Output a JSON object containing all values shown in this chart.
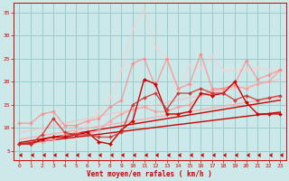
{
  "background_color": "#cce8e8",
  "grid_color": "#99cccc",
  "xlabel": "Vent moyen/en rafales ( km/h )",
  "xlabel_color": "#cc0000",
  "tick_color": "#cc0000",
  "xlim": [
    -0.5,
    23.5
  ],
  "ylim": [
    3,
    37
  ],
  "yticks": [
    5,
    10,
    15,
    20,
    25,
    30,
    35
  ],
  "xticks": [
    0,
    1,
    2,
    3,
    4,
    5,
    6,
    7,
    8,
    9,
    10,
    11,
    12,
    13,
    14,
    15,
    16,
    17,
    18,
    19,
    20,
    21,
    22,
    23
  ],
  "lines": [
    {
      "x": [
        0,
        1,
        2,
        3,
        4,
        5,
        6,
        7,
        8,
        9,
        10,
        11,
        12,
        13,
        14,
        15,
        16,
        17,
        18,
        19,
        20,
        21,
        22,
        23
      ],
      "y": [
        6.5,
        6.8,
        7.1,
        7.4,
        7.7,
        8.0,
        8.3,
        8.6,
        8.9,
        9.2,
        9.5,
        9.8,
        10.1,
        10.4,
        10.7,
        11.0,
        11.3,
        11.6,
        11.9,
        12.2,
        12.5,
        12.8,
        13.1,
        13.4
      ],
      "color": "#cc0000",
      "lw": 1.0,
      "marker": null,
      "alpha": 1.0,
      "linestyle": "-",
      "zorder": 4
    },
    {
      "x": [
        0,
        1,
        2,
        3,
        4,
        5,
        6,
        7,
        8,
        9,
        10,
        11,
        12,
        13,
        14,
        15,
        16,
        17,
        18,
        19,
        20,
        21,
        22,
        23
      ],
      "y": [
        6.8,
        7.2,
        7.6,
        8.0,
        8.4,
        8.8,
        9.2,
        9.6,
        10.0,
        10.4,
        10.8,
        11.2,
        11.6,
        12.0,
        12.4,
        12.8,
        13.2,
        13.6,
        14.0,
        14.4,
        14.8,
        15.2,
        15.6,
        16.0
      ],
      "color": "#cc0000",
      "lw": 1.0,
      "marker": null,
      "alpha": 1.0,
      "linestyle": "-",
      "zorder": 4
    },
    {
      "x": [
        0,
        1,
        2,
        3,
        4,
        5,
        6,
        7,
        8,
        9,
        10,
        11,
        12,
        13,
        14,
        15,
        16,
        17,
        18,
        19,
        20,
        21,
        22,
        23
      ],
      "y": [
        7.5,
        7.9,
        8.3,
        8.7,
        9.1,
        9.5,
        9.9,
        10.3,
        10.7,
        11.1,
        11.5,
        11.9,
        12.3,
        12.7,
        13.1,
        13.5,
        13.9,
        14.3,
        14.7,
        15.1,
        15.5,
        15.9,
        16.3,
        16.7
      ],
      "color": "#ffaaaa",
      "lw": 1.0,
      "marker": null,
      "alpha": 0.9,
      "linestyle": "-",
      "zorder": 3
    },
    {
      "x": [
        0,
        1,
        2,
        3,
        4,
        5,
        6,
        7,
        8,
        9,
        10,
        11,
        12,
        13,
        14,
        15,
        16,
        17,
        18,
        19,
        20,
        21,
        22,
        23
      ],
      "y": [
        9.0,
        9.5,
        10.0,
        10.5,
        11.0,
        11.5,
        12.0,
        12.5,
        13.0,
        13.5,
        14.0,
        14.5,
        15.0,
        15.5,
        16.0,
        16.5,
        17.0,
        17.5,
        18.0,
        18.5,
        19.0,
        19.5,
        20.0,
        20.5
      ],
      "color": "#ffbbbb",
      "lw": 1.0,
      "marker": null,
      "alpha": 0.7,
      "linestyle": "-",
      "zorder": 3
    },
    {
      "x": [
        0,
        1,
        2,
        3,
        4,
        5,
        6,
        7,
        8,
        9,
        10,
        11,
        12,
        13,
        14,
        15,
        16,
        17,
        18,
        19,
        20,
        21,
        22,
        23
      ],
      "y": [
        6.5,
        6.5,
        7.5,
        8.0,
        8.0,
        8.5,
        9.0,
        7.0,
        6.5,
        9.5,
        11.5,
        20.5,
        19.5,
        13.0,
        13.0,
        13.5,
        17.5,
        17.0,
        17.5,
        20.0,
        15.5,
        13.0,
        13.0,
        13.0
      ],
      "color": "#cc0000",
      "lw": 1.0,
      "marker": "D",
      "markersize": 2.0,
      "alpha": 1.0,
      "linestyle": "-",
      "zorder": 5
    },
    {
      "x": [
        0,
        1,
        2,
        3,
        4,
        5,
        6,
        7,
        8,
        9,
        10,
        11,
        12,
        13,
        14,
        15,
        16,
        17,
        18,
        19,
        20,
        21,
        22,
        23
      ],
      "y": [
        6.5,
        6.5,
        8.5,
        12.0,
        9.0,
        8.5,
        8.5,
        8.0,
        8.0,
        9.0,
        15.0,
        16.5,
        17.5,
        14.0,
        17.5,
        17.5,
        18.5,
        17.5,
        17.5,
        16.0,
        17.0,
        16.0,
        16.5,
        17.0
      ],
      "color": "#cc3333",
      "lw": 1.0,
      "marker": "D",
      "markersize": 2.0,
      "alpha": 0.85,
      "linestyle": "-",
      "zorder": 5
    },
    {
      "x": [
        0,
        1,
        2,
        3,
        4,
        5,
        6,
        7,
        8,
        9,
        10,
        11,
        12,
        13,
        14,
        15,
        16,
        17,
        18,
        19,
        20,
        21,
        22,
        23
      ],
      "y": [
        6.5,
        6.5,
        7.0,
        7.5,
        8.5,
        9.0,
        8.5,
        9.5,
        11.5,
        13.0,
        14.0,
        14.5,
        13.5,
        13.5,
        14.5,
        15.0,
        17.0,
        18.0,
        18.5,
        19.0,
        18.5,
        19.5,
        20.0,
        22.5
      ],
      "color": "#ff9999",
      "lw": 1.0,
      "marker": "D",
      "markersize": 2.0,
      "alpha": 0.8,
      "linestyle": "-",
      "zorder": 4
    },
    {
      "x": [
        0,
        1,
        2,
        3,
        4,
        5,
        6,
        7,
        8,
        9,
        10,
        11,
        12,
        13,
        14,
        15,
        16,
        17,
        18,
        19,
        20,
        21,
        22,
        23
      ],
      "y": [
        11.0,
        11.0,
        13.0,
        13.5,
        10.5,
        10.5,
        11.5,
        12.0,
        14.5,
        16.0,
        24.0,
        25.0,
        19.0,
        25.0,
        18.5,
        19.5,
        26.0,
        18.5,
        18.5,
        19.5,
        24.5,
        20.5,
        21.5,
        22.5
      ],
      "color": "#ff8888",
      "lw": 1.0,
      "marker": "D",
      "markersize": 2.0,
      "alpha": 0.75,
      "linestyle": "-",
      "zorder": 4
    },
    {
      "x": [
        0,
        1,
        2,
        3,
        4,
        5,
        6,
        7,
        8,
        9,
        10,
        11,
        12,
        13,
        14,
        15,
        16,
        17,
        18,
        19,
        20,
        21,
        22,
        23
      ],
      "y": [
        6.5,
        6.5,
        9.0,
        12.0,
        8.5,
        7.5,
        11.0,
        13.5,
        16.5,
        22.5,
        31.5,
        35.5,
        27.5,
        25.0,
        17.5,
        23.5,
        23.0,
        25.5,
        22.5,
        22.5,
        22.5,
        23.0,
        22.5,
        22.5
      ],
      "color": "#ffcccc",
      "lw": 1.0,
      "marker": "D",
      "markersize": 2.0,
      "alpha": 0.6,
      "linestyle": "-",
      "zorder": 3
    },
    {
      "x": [
        0,
        1,
        2,
        3,
        4,
        5,
        6,
        7,
        8,
        9,
        10,
        11,
        12,
        13,
        14,
        15,
        16,
        17,
        18,
        19,
        20,
        21,
        22,
        23
      ],
      "y": [
        4.2,
        4.2,
        4.2,
        4.2,
        4.2,
        4.2,
        4.2,
        4.2,
        4.2,
        4.2,
        4.2,
        4.2,
        4.2,
        4.2,
        4.2,
        4.2,
        4.2,
        4.2,
        4.2,
        4.2,
        4.2,
        4.2,
        4.2,
        4.2
      ],
      "color": "#cc0000",
      "lw": 0.5,
      "marker": 4,
      "markersize": 3.0,
      "alpha": 1.0,
      "linestyle": "none",
      "zorder": 5
    }
  ]
}
